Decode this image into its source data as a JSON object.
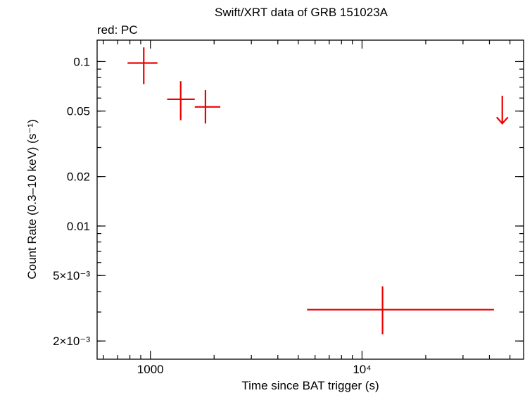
{
  "chart_data": {
    "type": "scatter",
    "title": "Swift/XRT data of GRB 151023A",
    "subtitle": "red: PC",
    "xlabel": "Time since BAT trigger (s)",
    "ylabel": "Count Rate (0.3–10 keV) (s⁻¹)",
    "xscale": "log",
    "yscale": "log",
    "xlim": [
      560,
      58000
    ],
    "ylim": [
      0.00155,
      0.135
    ],
    "grid": false,
    "series_color": "#ee0000",
    "x_ticks": [
      {
        "value": 1000,
        "label": "1000"
      },
      {
        "value": 10000,
        "label": "10⁴"
      }
    ],
    "y_ticks": [
      {
        "value": 0.1,
        "label": "0.1"
      },
      {
        "value": 0.05,
        "label": "0.05"
      },
      {
        "value": 0.02,
        "label": "0.02"
      },
      {
        "value": 0.01,
        "label": "0.01"
      },
      {
        "value": 0.005,
        "label": "5×10⁻³"
      },
      {
        "value": 0.002,
        "label": "2×10⁻³"
      }
    ],
    "points": [
      {
        "x": 930,
        "x_lo": 780,
        "x_hi": 1080,
        "y": 0.098,
        "y_lo": 0.073,
        "y_hi": 0.122
      },
      {
        "x": 1390,
        "x_lo": 1200,
        "x_hi": 1620,
        "y": 0.059,
        "y_lo": 0.044,
        "y_hi": 0.076
      },
      {
        "x": 1820,
        "x_lo": 1620,
        "x_hi": 2140,
        "y": 0.053,
        "y_lo": 0.042,
        "y_hi": 0.067
      },
      {
        "x": 12500,
        "x_lo": 5500,
        "x_hi": 42000,
        "y": 0.0031,
        "y_lo": 0.0022,
        "y_hi": 0.0043
      }
    ],
    "upper_limits": [
      {
        "x": 46000,
        "y": 0.062,
        "y_to": 0.042
      }
    ]
  }
}
